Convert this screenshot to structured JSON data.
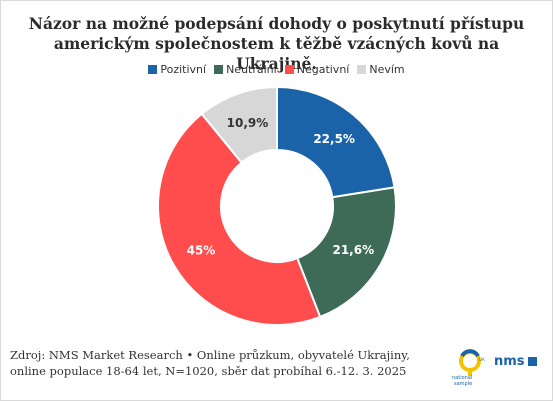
{
  "chart_data": {
    "type": "pie",
    "title": "Názor na možné podepsání dohody o poskytnutí přístupu americkým společnostem k těžbě vzácných kovů na Ukrajině.",
    "categories": [
      "Pozitivní",
      "Neutrální",
      "Negativní",
      "Nevím"
    ],
    "values": [
      22.5,
      21.6,
      45,
      10.9
    ],
    "labels": [
      "22,5%",
      "21,6%",
      "45%",
      "10,9%"
    ],
    "colors": [
      "#1b63a8",
      "#3d6b57",
      "#ff4d4d",
      "#d7d7d7"
    ],
    "label_colors": [
      "#ffffff",
      "#ffffff",
      "#ffffff",
      "#333333"
    ],
    "legend_position": "top"
  },
  "source": "Zdroj: NMS Market Research • Online průzkum, obyvatelé Ukrajiny, online populace 18-64 let, N=1020, sběr dat probíhal 6.-12. 3. 2025",
  "logos": {
    "sample": "national sample UA",
    "nms": "nms"
  }
}
